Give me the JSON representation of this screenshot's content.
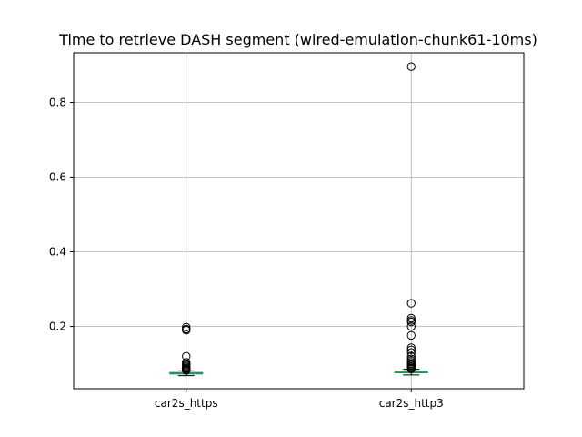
{
  "chart_data": {
    "type": "box",
    "title": "Time to retrieve DASH segment (wired-emulation-chunk61-10ms)",
    "xlabel": "",
    "ylabel": "",
    "ylim": [
      0.033,
      0.933
    ],
    "yticks": [
      0.2,
      0.4,
      0.6,
      0.8
    ],
    "ytick_labels": [
      "0.2",
      "0.4",
      "0.6",
      "0.8"
    ],
    "grid": true,
    "categories": [
      "car2s_https",
      "car2s_http3"
    ],
    "series": [
      {
        "name": "car2s_https",
        "q1": 0.0725,
        "median": 0.0745,
        "q3": 0.0765,
        "whisker_low": 0.068,
        "whisker_high": 0.081,
        "outliers": [
          0.198,
          0.193,
          0.19,
          0.12,
          0.104,
          0.1,
          0.097,
          0.094,
          0.091,
          0.088,
          0.086,
          0.084,
          0.082
        ]
      },
      {
        "name": "car2s_http3",
        "q1": 0.0755,
        "median": 0.077,
        "q3": 0.0795,
        "whisker_low": 0.07,
        "whisker_high": 0.085,
        "outliers": [
          0.896,
          0.262,
          0.222,
          0.216,
          0.212,
          0.2,
          0.176,
          0.143,
          0.137,
          0.13,
          0.12,
          0.113,
          0.108,
          0.104,
          0.1,
          0.097,
          0.094,
          0.091,
          0.088,
          0.086
        ]
      }
    ]
  }
}
